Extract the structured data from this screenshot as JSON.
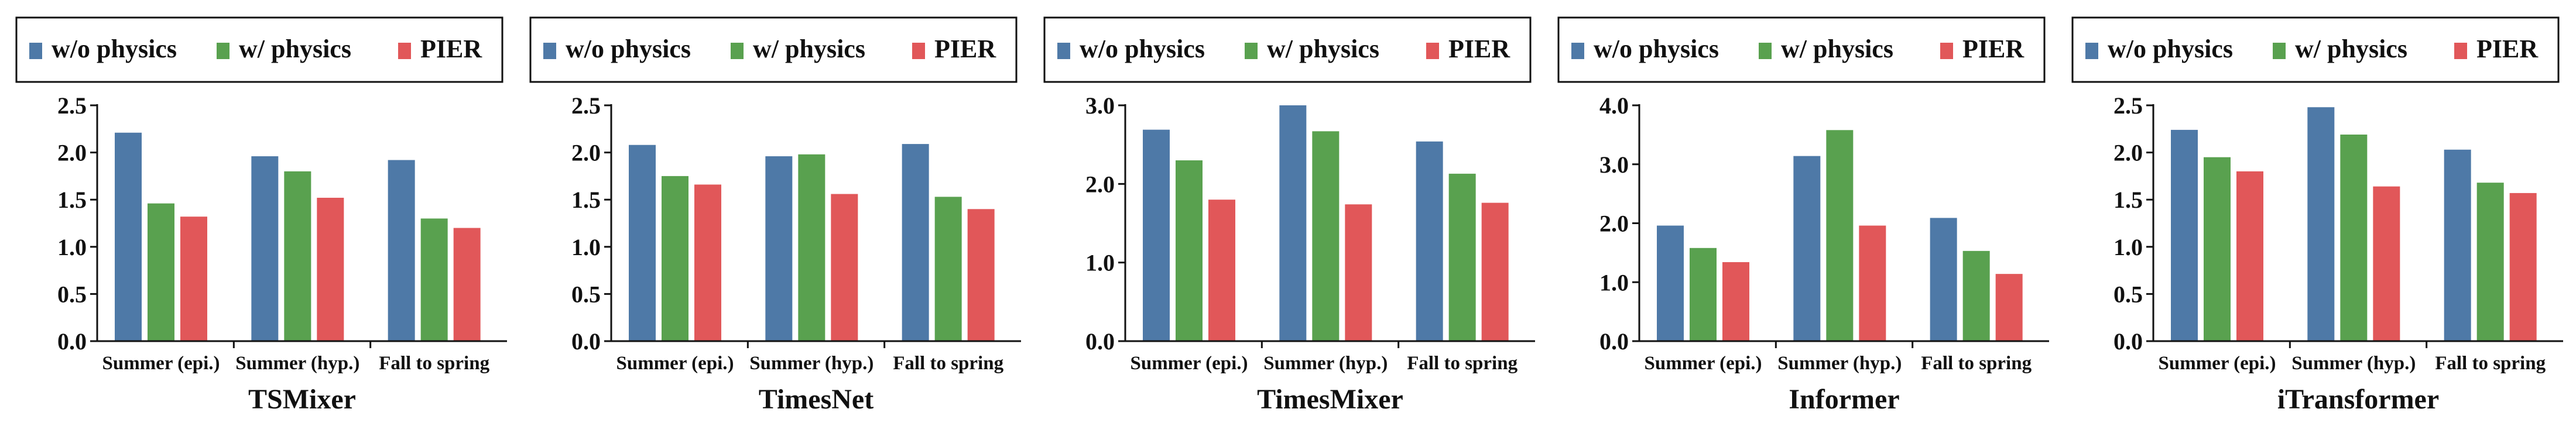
{
  "legend": {
    "items": [
      {
        "label": "w/o physics",
        "color": "#4e79a7"
      },
      {
        "label": "w/ physics",
        "color": "#59a14f"
      },
      {
        "label": "PIER",
        "color": "#e15759"
      }
    ]
  },
  "chart_data": [
    {
      "type": "bar",
      "title": "TSMixer",
      "categories": [
        "Summer (epi.)",
        "Summer (hyp.)",
        "Fall to spring"
      ],
      "series": [
        {
          "name": "w/o physics",
          "values": [
            2.21,
            1.96,
            1.92
          ]
        },
        {
          "name": "w/ physics",
          "values": [
            1.46,
            1.8,
            1.3
          ]
        },
        {
          "name": "PIER",
          "values": [
            1.32,
            1.52,
            1.2
          ]
        }
      ],
      "ylim": [
        0,
        2.5
      ],
      "yticks": [
        "0.0",
        "0.5",
        "1.0",
        "1.5",
        "2.0",
        "2.5"
      ],
      "grid": false,
      "legend_position": "top"
    },
    {
      "type": "bar",
      "title": "TimesNet",
      "categories": [
        "Summer (epi.)",
        "Summer (hyp.)",
        "Fall to spring"
      ],
      "series": [
        {
          "name": "w/o physics",
          "values": [
            2.08,
            1.96,
            2.09
          ]
        },
        {
          "name": "w/ physics",
          "values": [
            1.75,
            1.98,
            1.53
          ]
        },
        {
          "name": "PIER",
          "values": [
            1.66,
            1.56,
            1.4
          ]
        }
      ],
      "ylim": [
        0,
        2.5
      ],
      "yticks": [
        "0.0",
        "0.5",
        "1.0",
        "1.5",
        "2.0",
        "2.5"
      ],
      "grid": false,
      "legend_position": "top"
    },
    {
      "type": "bar",
      "title": "TimesMixer",
      "categories": [
        "Summer (epi.)",
        "Summer (hyp.)",
        "Fall to spring"
      ],
      "series": [
        {
          "name": "w/o physics",
          "values": [
            2.69,
            3.0,
            2.54
          ]
        },
        {
          "name": "w/ physics",
          "values": [
            2.3,
            2.67,
            2.13
          ]
        },
        {
          "name": "PIER",
          "values": [
            1.8,
            1.74,
            1.76
          ]
        }
      ],
      "ylim": [
        0,
        3.0
      ],
      "yticks": [
        "0.0",
        "1.0",
        "2.0",
        "3.0"
      ],
      "grid": false,
      "legend_position": "top"
    },
    {
      "type": "bar",
      "title": "Informer",
      "categories": [
        "Summer (epi.)",
        "Summer (hyp.)",
        "Fall to spring"
      ],
      "series": [
        {
          "name": "w/o physics",
          "values": [
            1.96,
            3.14,
            2.09
          ]
        },
        {
          "name": "w/ physics",
          "values": [
            1.58,
            3.58,
            1.53
          ]
        },
        {
          "name": "PIER",
          "values": [
            1.34,
            1.96,
            1.14
          ]
        }
      ],
      "ylim": [
        0,
        4.0
      ],
      "yticks": [
        "0.0",
        "1.0",
        "2.0",
        "3.0",
        "4.0"
      ],
      "grid": false,
      "legend_position": "top"
    },
    {
      "type": "bar",
      "title": "iTransformer",
      "categories": [
        "Summer (epi.)",
        "Summer (hyp.)",
        "Fall to spring"
      ],
      "series": [
        {
          "name": "w/o physics",
          "values": [
            2.24,
            2.48,
            2.03
          ]
        },
        {
          "name": "w/ physics",
          "values": [
            1.95,
            2.19,
            1.68
          ]
        },
        {
          "name": "PIER",
          "values": [
            1.8,
            1.64,
            1.57
          ]
        }
      ],
      "ylim": [
        0,
        2.5
      ],
      "yticks": [
        "0.0",
        "0.5",
        "1.0",
        "1.5",
        "2.0",
        "2.5"
      ],
      "grid": false,
      "legend_position": "top"
    }
  ]
}
